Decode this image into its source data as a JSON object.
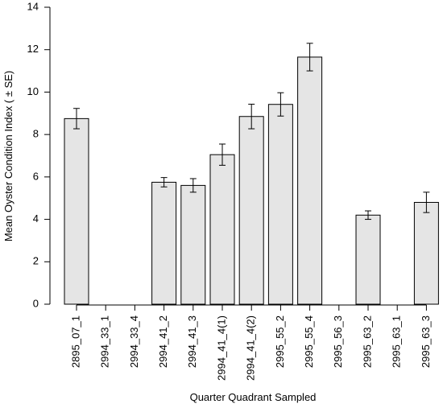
{
  "chart_data": {
    "type": "bar",
    "title": "",
    "xlabel": "Quarter Quadrant Sampled",
    "ylabel": "Mean Oyster Condition Index ( ± SE)",
    "ylim": [
      0,
      14
    ],
    "yticks": [
      0,
      2,
      4,
      6,
      8,
      10,
      12,
      14
    ],
    "grid": false,
    "legend": "none",
    "categories": [
      "2895_07_1",
      "2994_33_1",
      "2994_33_4",
      "2994_41_2",
      "2994_41_3",
      "2994_41_4(1)",
      "2994_41_4(2)",
      "2995_55_2",
      "2995_55_4",
      "2995_56_3",
      "2995_63_2",
      "2995_63_1",
      "2995_63_3"
    ],
    "values": [
      8.75,
      0,
      0,
      5.75,
      5.6,
      7.05,
      8.85,
      9.42,
      11.65,
      0,
      4.2,
      0,
      4.8
    ],
    "se": [
      0.48,
      0,
      0,
      0.22,
      0.32,
      0.5,
      0.58,
      0.55,
      0.65,
      0,
      0.2,
      0,
      0.48
    ],
    "bar_fill": "#e5e5e5",
    "bar_stroke": "#000000"
  }
}
